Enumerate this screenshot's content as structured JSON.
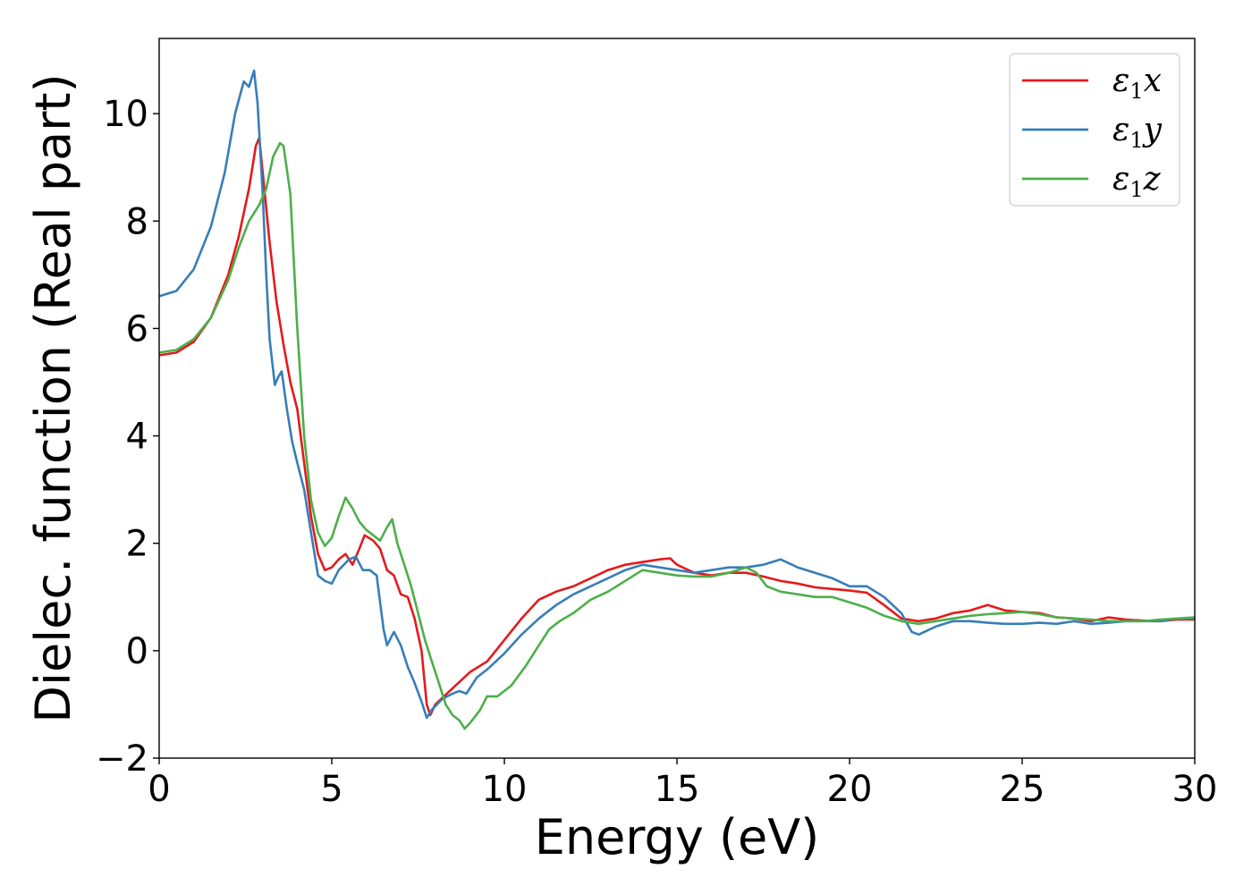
{
  "chart_data": {
    "type": "line",
    "title": "",
    "xlabel": "Energy (eV)",
    "ylabel": "Dielec. function (Real part)",
    "xlim": [
      0,
      30
    ],
    "ylim": [
      -2,
      11.4
    ],
    "xticks": [
      0,
      5,
      10,
      15,
      20,
      25,
      30
    ],
    "yticks": [
      -2,
      0,
      2,
      4,
      6,
      8,
      10
    ],
    "xtick_labels": [
      "0",
      "5",
      "10",
      "15",
      "20",
      "25",
      "30"
    ],
    "ytick_labels": [
      "−2",
      "0",
      "2",
      "4",
      "6",
      "8",
      "10"
    ],
    "grid": false,
    "legend_position": "top-right",
    "series": [
      {
        "name": "ε1x",
        "legend": {
          "symbol": "ε",
          "sub": "1",
          "var": "x"
        },
        "color": "#e41a1c",
        "points": [
          [
            0,
            5.5
          ],
          [
            0.5,
            5.55
          ],
          [
            1,
            5.75
          ],
          [
            1.5,
            6.2
          ],
          [
            2,
            7.0
          ],
          [
            2.3,
            7.7
          ],
          [
            2.6,
            8.6
          ],
          [
            2.8,
            9.4
          ],
          [
            2.9,
            9.55
          ],
          [
            3.0,
            8.9
          ],
          [
            3.2,
            7.6
          ],
          [
            3.4,
            6.5
          ],
          [
            3.6,
            5.7
          ],
          [
            3.8,
            5.0
          ],
          [
            4.0,
            4.5
          ],
          [
            4.2,
            3.5
          ],
          [
            4.4,
            2.5
          ],
          [
            4.6,
            1.8
          ],
          [
            4.8,
            1.5
          ],
          [
            5.0,
            1.55
          ],
          [
            5.2,
            1.7
          ],
          [
            5.4,
            1.8
          ],
          [
            5.6,
            1.6
          ],
          [
            5.8,
            1.9
          ],
          [
            5.95,
            2.15
          ],
          [
            6.2,
            2.05
          ],
          [
            6.4,
            1.9
          ],
          [
            6.6,
            1.5
          ],
          [
            6.8,
            1.4
          ],
          [
            7.0,
            1.05
          ],
          [
            7.2,
            1.0
          ],
          [
            7.4,
            0.6
          ],
          [
            7.6,
            0.0
          ],
          [
            7.75,
            -1.0
          ],
          [
            7.85,
            -1.2
          ],
          [
            8.0,
            -1.0
          ],
          [
            8.5,
            -0.7
          ],
          [
            9.0,
            -0.4
          ],
          [
            9.5,
            -0.2
          ],
          [
            10.0,
            0.2
          ],
          [
            10.5,
            0.6
          ],
          [
            11.0,
            0.95
          ],
          [
            11.5,
            1.1
          ],
          [
            12.0,
            1.2
          ],
          [
            12.5,
            1.35
          ],
          [
            13.0,
            1.5
          ],
          [
            13.5,
            1.6
          ],
          [
            14.0,
            1.65
          ],
          [
            14.5,
            1.7
          ],
          [
            14.8,
            1.72
          ],
          [
            15.0,
            1.6
          ],
          [
            15.5,
            1.45
          ],
          [
            16.0,
            1.4
          ],
          [
            16.5,
            1.45
          ],
          [
            17.0,
            1.45
          ],
          [
            17.5,
            1.38
          ],
          [
            18.0,
            1.3
          ],
          [
            18.5,
            1.25
          ],
          [
            19.0,
            1.18
          ],
          [
            19.5,
            1.15
          ],
          [
            20.0,
            1.12
          ],
          [
            20.5,
            1.08
          ],
          [
            21.0,
            0.85
          ],
          [
            21.5,
            0.6
          ],
          [
            22.0,
            0.55
          ],
          [
            22.5,
            0.6
          ],
          [
            23.0,
            0.7
          ],
          [
            23.5,
            0.75
          ],
          [
            24.0,
            0.85
          ],
          [
            24.5,
            0.75
          ],
          [
            25.0,
            0.72
          ],
          [
            25.5,
            0.7
          ],
          [
            26.0,
            0.62
          ],
          [
            26.5,
            0.6
          ],
          [
            27.0,
            0.55
          ],
          [
            27.5,
            0.62
          ],
          [
            28.0,
            0.58
          ],
          [
            28.5,
            0.56
          ],
          [
            29.0,
            0.55
          ],
          [
            29.5,
            0.58
          ],
          [
            30.0,
            0.58
          ]
        ]
      },
      {
        "name": "ε1y",
        "legend": {
          "symbol": "ε",
          "sub": "1",
          "var": "y"
        },
        "color": "#377eb8",
        "points": [
          [
            0,
            6.6
          ],
          [
            0.5,
            6.7
          ],
          [
            1,
            7.1
          ],
          [
            1.5,
            7.9
          ],
          [
            1.9,
            8.9
          ],
          [
            2.2,
            10.0
          ],
          [
            2.45,
            10.6
          ],
          [
            2.6,
            10.5
          ],
          [
            2.75,
            10.8
          ],
          [
            2.85,
            10.2
          ],
          [
            3.0,
            8.5
          ],
          [
            3.1,
            7.0
          ],
          [
            3.2,
            5.8
          ],
          [
            3.35,
            4.95
          ],
          [
            3.45,
            5.1
          ],
          [
            3.55,
            5.2
          ],
          [
            3.7,
            4.5
          ],
          [
            3.85,
            3.9
          ],
          [
            4.0,
            3.5
          ],
          [
            4.2,
            3.0
          ],
          [
            4.4,
            2.2
          ],
          [
            4.6,
            1.4
          ],
          [
            4.8,
            1.3
          ],
          [
            5.0,
            1.25
          ],
          [
            5.2,
            1.5
          ],
          [
            5.5,
            1.7
          ],
          [
            5.7,
            1.75
          ],
          [
            5.9,
            1.5
          ],
          [
            6.1,
            1.5
          ],
          [
            6.3,
            1.4
          ],
          [
            6.5,
            0.4
          ],
          [
            6.6,
            0.1
          ],
          [
            6.8,
            0.35
          ],
          [
            7.0,
            0.1
          ],
          [
            7.2,
            -0.3
          ],
          [
            7.4,
            -0.6
          ],
          [
            7.6,
            -0.95
          ],
          [
            7.75,
            -1.25
          ],
          [
            7.9,
            -1.1
          ],
          [
            8.2,
            -0.9
          ],
          [
            8.5,
            -0.8
          ],
          [
            8.7,
            -0.75
          ],
          [
            8.9,
            -0.8
          ],
          [
            9.2,
            -0.5
          ],
          [
            9.5,
            -0.35
          ],
          [
            10.0,
            -0.05
          ],
          [
            10.5,
            0.3
          ],
          [
            11.0,
            0.6
          ],
          [
            11.5,
            0.85
          ],
          [
            12.0,
            1.05
          ],
          [
            12.5,
            1.2
          ],
          [
            13.0,
            1.35
          ],
          [
            13.5,
            1.5
          ],
          [
            14.0,
            1.6
          ],
          [
            14.5,
            1.55
          ],
          [
            15.0,
            1.5
          ],
          [
            15.5,
            1.45
          ],
          [
            16.0,
            1.5
          ],
          [
            16.5,
            1.55
          ],
          [
            17.0,
            1.55
          ],
          [
            17.5,
            1.6
          ],
          [
            18.0,
            1.7
          ],
          [
            18.5,
            1.55
          ],
          [
            19.0,
            1.45
          ],
          [
            19.5,
            1.35
          ],
          [
            20.0,
            1.2
          ],
          [
            20.5,
            1.2
          ],
          [
            21.0,
            1.0
          ],
          [
            21.5,
            0.7
          ],
          [
            21.8,
            0.35
          ],
          [
            22.0,
            0.3
          ],
          [
            22.5,
            0.45
          ],
          [
            23.0,
            0.55
          ],
          [
            23.5,
            0.55
          ],
          [
            24.0,
            0.52
          ],
          [
            24.5,
            0.5
          ],
          [
            25.0,
            0.5
          ],
          [
            25.5,
            0.52
          ],
          [
            26.0,
            0.5
          ],
          [
            26.5,
            0.55
          ],
          [
            27.0,
            0.5
          ],
          [
            27.5,
            0.52
          ],
          [
            28.0,
            0.55
          ],
          [
            28.5,
            0.55
          ],
          [
            29.0,
            0.55
          ],
          [
            29.5,
            0.6
          ],
          [
            30.0,
            0.6
          ]
        ]
      },
      {
        "name": "ε1z",
        "legend": {
          "symbol": "ε",
          "sub": "1",
          "var": "z"
        },
        "color": "#4daf4a",
        "points": [
          [
            0,
            5.55
          ],
          [
            0.5,
            5.6
          ],
          [
            1,
            5.8
          ],
          [
            1.5,
            6.2
          ],
          [
            2,
            6.9
          ],
          [
            2.3,
            7.5
          ],
          [
            2.6,
            8.0
          ],
          [
            2.9,
            8.3
          ],
          [
            3.1,
            8.6
          ],
          [
            3.3,
            9.2
          ],
          [
            3.5,
            9.45
          ],
          [
            3.6,
            9.4
          ],
          [
            3.8,
            8.5
          ],
          [
            4.0,
            6.0
          ],
          [
            4.2,
            4.0
          ],
          [
            4.4,
            2.8
          ],
          [
            4.6,
            2.2
          ],
          [
            4.8,
            1.95
          ],
          [
            5.0,
            2.1
          ],
          [
            5.2,
            2.5
          ],
          [
            5.4,
            2.85
          ],
          [
            5.6,
            2.65
          ],
          [
            5.8,
            2.4
          ],
          [
            6.0,
            2.25
          ],
          [
            6.2,
            2.15
          ],
          [
            6.4,
            2.05
          ],
          [
            6.6,
            2.3
          ],
          [
            6.75,
            2.45
          ],
          [
            6.9,
            2.0
          ],
          [
            7.1,
            1.6
          ],
          [
            7.3,
            1.2
          ],
          [
            7.5,
            0.7
          ],
          [
            7.7,
            0.2
          ],
          [
            7.9,
            -0.2
          ],
          [
            8.1,
            -0.6
          ],
          [
            8.3,
            -1.0
          ],
          [
            8.5,
            -1.2
          ],
          [
            8.7,
            -1.3
          ],
          [
            8.85,
            -1.45
          ],
          [
            9.0,
            -1.35
          ],
          [
            9.3,
            -1.1
          ],
          [
            9.5,
            -0.85
          ],
          [
            9.8,
            -0.85
          ],
          [
            10.2,
            -0.65
          ],
          [
            10.6,
            -0.3
          ],
          [
            11.0,
            0.1
          ],
          [
            11.3,
            0.4
          ],
          [
            11.6,
            0.55
          ],
          [
            12.0,
            0.7
          ],
          [
            12.5,
            0.95
          ],
          [
            13.0,
            1.1
          ],
          [
            13.5,
            1.3
          ],
          [
            14.0,
            1.5
          ],
          [
            14.5,
            1.45
          ],
          [
            15.0,
            1.4
          ],
          [
            15.5,
            1.38
          ],
          [
            16.0,
            1.38
          ],
          [
            16.5,
            1.45
          ],
          [
            17.0,
            1.55
          ],
          [
            17.3,
            1.45
          ],
          [
            17.6,
            1.2
          ],
          [
            18.0,
            1.1
          ],
          [
            18.5,
            1.05
          ],
          [
            19.0,
            1.0
          ],
          [
            19.5,
            1.0
          ],
          [
            20.0,
            0.9
          ],
          [
            20.5,
            0.8
          ],
          [
            21.0,
            0.65
          ],
          [
            21.5,
            0.55
          ],
          [
            22.0,
            0.5
          ],
          [
            22.5,
            0.55
          ],
          [
            23.0,
            0.6
          ],
          [
            23.5,
            0.65
          ],
          [
            24.0,
            0.68
          ],
          [
            24.5,
            0.7
          ],
          [
            25.0,
            0.72
          ],
          [
            25.5,
            0.68
          ],
          [
            26.0,
            0.62
          ],
          [
            26.5,
            0.6
          ],
          [
            27.0,
            0.58
          ],
          [
            27.5,
            0.55
          ],
          [
            28.0,
            0.55
          ],
          [
            28.5,
            0.55
          ],
          [
            29.0,
            0.58
          ],
          [
            29.5,
            0.6
          ],
          [
            30.0,
            0.62
          ]
        ]
      }
    ]
  }
}
